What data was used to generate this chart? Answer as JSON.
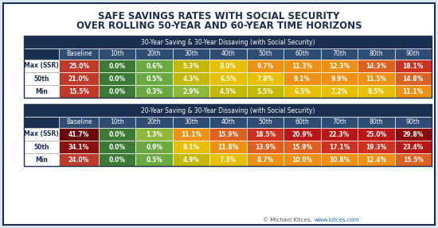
{
  "title_line1": "SAFE SAVINGS RATES WITH SOCIAL SECURITY",
  "title_line2": "OVER ROLLING 50-YEAR AND 60-YEAR TIME HORIZONS",
  "table1_header": "30-Year Saving & 30-Year Dissaving (with Social Security)",
  "table2_header": "20-Year Saving & 30-Year Dissaving (with Social Security)",
  "col_headers": [
    "Baseline",
    "10th",
    "20th",
    "30th",
    "40th",
    "50th",
    "60th",
    "70th",
    "80th",
    "90th"
  ],
  "row_labels": [
    "Max (SSR)",
    "50th",
    "Min"
  ],
  "table1_data": [
    [
      "25.0%",
      "0.0%",
      "0.6%",
      "5.3%",
      "8.0%",
      "9.7%",
      "11.3%",
      "12.3%",
      "14.3%",
      "18.1%"
    ],
    [
      "21.0%",
      "0.0%",
      "0.5%",
      "4.3%",
      "6.5%",
      "7.8%",
      "9.1%",
      "9.9%",
      "11.5%",
      "14.8%"
    ],
    [
      "15.5%",
      "0.0%",
      "0.3%",
      "2.9%",
      "4.5%",
      "5.5%",
      "6.5%",
      "7.2%",
      "8.5%",
      "11.1%"
    ]
  ],
  "table2_data": [
    [
      "41.7%",
      "0.0%",
      "1.3%",
      "11.1%",
      "15.9%",
      "18.5%",
      "20.9%",
      "22.3%",
      "25.0%",
      "29.8%"
    ],
    [
      "34.1%",
      "0.0%",
      "0.9%",
      "8.1%",
      "11.8%",
      "13.9%",
      "15.9%",
      "17.1%",
      "19.3%",
      "23.4%"
    ],
    [
      "24.0%",
      "0.0%",
      "0.5%",
      "4.9%",
      "7.3%",
      "8.7%",
      "10.0%",
      "10.8%",
      "12.4%",
      "15.5%"
    ]
  ],
  "header_bg": "#1b2f50",
  "header_text": "#ffffff",
  "col_header_bg": "#2e4d72",
  "col_header_text": "#ffffff",
  "row_label_text": "#1b2f50",
  "outer_bg": "#dce6f0",
  "inner_bg": "#ffffff",
  "title_color": "#1b2f50",
  "border_color": "#1b2f50",
  "cell_border": "#ffffff",
  "row_label_border": "#aaaaaa",
  "footer_text": "© Michael Kitces,",
  "footer_link": "www.kitces.com",
  "footer_color": "#555555",
  "footer_link_color": "#1a6aaa"
}
